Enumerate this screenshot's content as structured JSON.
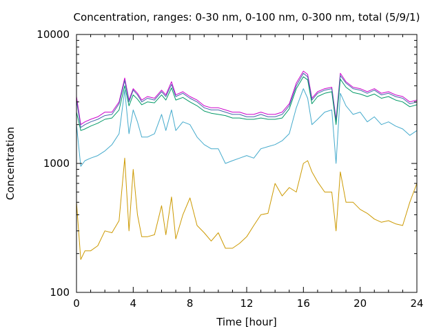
{
  "chart_data": {
    "type": "line",
    "title": "Concentration, ranges: 0-30 nm, 0-100 nm, 0-300 nm, total (5/9/1)",
    "xlabel": "Time [hour]",
    "ylabel": "Concentration",
    "xlim": [
      0,
      24
    ],
    "ylim": [
      100,
      10000
    ],
    "yscale": "log",
    "grid": false,
    "legend": "none",
    "x_ticks": [
      0,
      4,
      8,
      12,
      16,
      20,
      24
    ],
    "x_tick_labels": [
      "0",
      "4",
      "8",
      "12",
      "16",
      "20",
      "24"
    ],
    "y_ticks": [
      100,
      1000,
      10000
    ],
    "y_tick_labels": [
      "100",
      "1000",
      "10000"
    ],
    "x": [
      0,
      0.3,
      0.6,
      1,
      1.5,
      2,
      2.5,
      3,
      3.4,
      3.7,
      4,
      4.3,
      4.6,
      5,
      5.5,
      6,
      6.3,
      6.7,
      7,
      7.5,
      8,
      8.5,
      9,
      9.5,
      10,
      10.5,
      11,
      11.5,
      12,
      12.5,
      13,
      13.5,
      14,
      14.5,
      15,
      15.5,
      16,
      16.3,
      16.6,
      17,
      17.5,
      18,
      18.3,
      18.6,
      19,
      19.5,
      20,
      20.5,
      21,
      21.5,
      22,
      22.5,
      23,
      23.5,
      24
    ],
    "series": [
      {
        "color": "#cc00cc",
        "values": [
          3300,
          2000,
          2100,
          2200,
          2300,
          2500,
          2500,
          3000,
          4600,
          3100,
          3800,
          3500,
          3100,
          3300,
          3200,
          3700,
          3400,
          4300,
          3400,
          3600,
          3300,
          3100,
          2800,
          2700,
          2700,
          2600,
          2500,
          2500,
          2400,
          2400,
          2500,
          2400,
          2400,
          2500,
          2900,
          4200,
          5200,
          4900,
          3200,
          3600,
          3800,
          3900,
          2200,
          5000,
          4300,
          3900,
          3800,
          3600,
          3800,
          3500,
          3600,
          3400,
          3300,
          3000,
          3100
        ]
      },
      {
        "color": "#4466aa",
        "values": [
          3100,
          1900,
          2000,
          2100,
          2200,
          2350,
          2400,
          2900,
          4400,
          3000,
          3700,
          3400,
          3000,
          3200,
          3100,
          3600,
          3300,
          4100,
          3300,
          3500,
          3200,
          3000,
          2700,
          2600,
          2600,
          2500,
          2400,
          2400,
          2300,
          2300,
          2400,
          2300,
          2300,
          2400,
          2800,
          4000,
          5000,
          4700,
          3100,
          3500,
          3700,
          3800,
          2100,
          4800,
          4200,
          3800,
          3700,
          3500,
          3700,
          3400,
          3500,
          3300,
          3200,
          2900,
          3000
        ]
      },
      {
        "color": "#009966",
        "values": [
          2500,
          1800,
          1850,
          1950,
          2050,
          2200,
          2250,
          2600,
          4000,
          2800,
          3400,
          3150,
          2850,
          3000,
          2950,
          3400,
          3100,
          3850,
          3100,
          3250,
          3000,
          2800,
          2550,
          2450,
          2400,
          2350,
          2250,
          2250,
          2200,
          2200,
          2250,
          2200,
          2200,
          2250,
          2650,
          3800,
          4700,
          4450,
          2900,
          3300,
          3500,
          3600,
          2000,
          4500,
          3900,
          3550,
          3450,
          3300,
          3450,
          3200,
          3300,
          3100,
          3000,
          2750,
          2850
        ]
      },
      {
        "color": "#44aacc",
        "values": [
          2000,
          950,
          1050,
          1100,
          1150,
          1250,
          1400,
          1700,
          3700,
          1700,
          2600,
          2100,
          1600,
          1600,
          1700,
          2400,
          1800,
          2600,
          1800,
          2100,
          2000,
          1600,
          1400,
          1300,
          1300,
          1000,
          1050,
          1100,
          1150,
          1100,
          1300,
          1350,
          1400,
          1500,
          1700,
          2700,
          3800,
          3200,
          2000,
          2200,
          2500,
          2600,
          1000,
          3500,
          2800,
          2400,
          2500,
          2100,
          2300,
          2000,
          2100,
          1950,
          1850,
          1650,
          1800
        ]
      },
      {
        "color": "#cc9900",
        "values": [
          500,
          180,
          210,
          210,
          230,
          300,
          290,
          360,
          1100,
          300,
          900,
          400,
          270,
          270,
          280,
          470,
          280,
          550,
          260,
          400,
          540,
          330,
          290,
          250,
          290,
          220,
          220,
          240,
          270,
          330,
          400,
          410,
          700,
          560,
          650,
          600,
          1000,
          1050,
          860,
          720,
          600,
          600,
          300,
          860,
          500,
          500,
          440,
          410,
          370,
          350,
          360,
          340,
          330,
          500,
          700
        ]
      }
    ]
  }
}
